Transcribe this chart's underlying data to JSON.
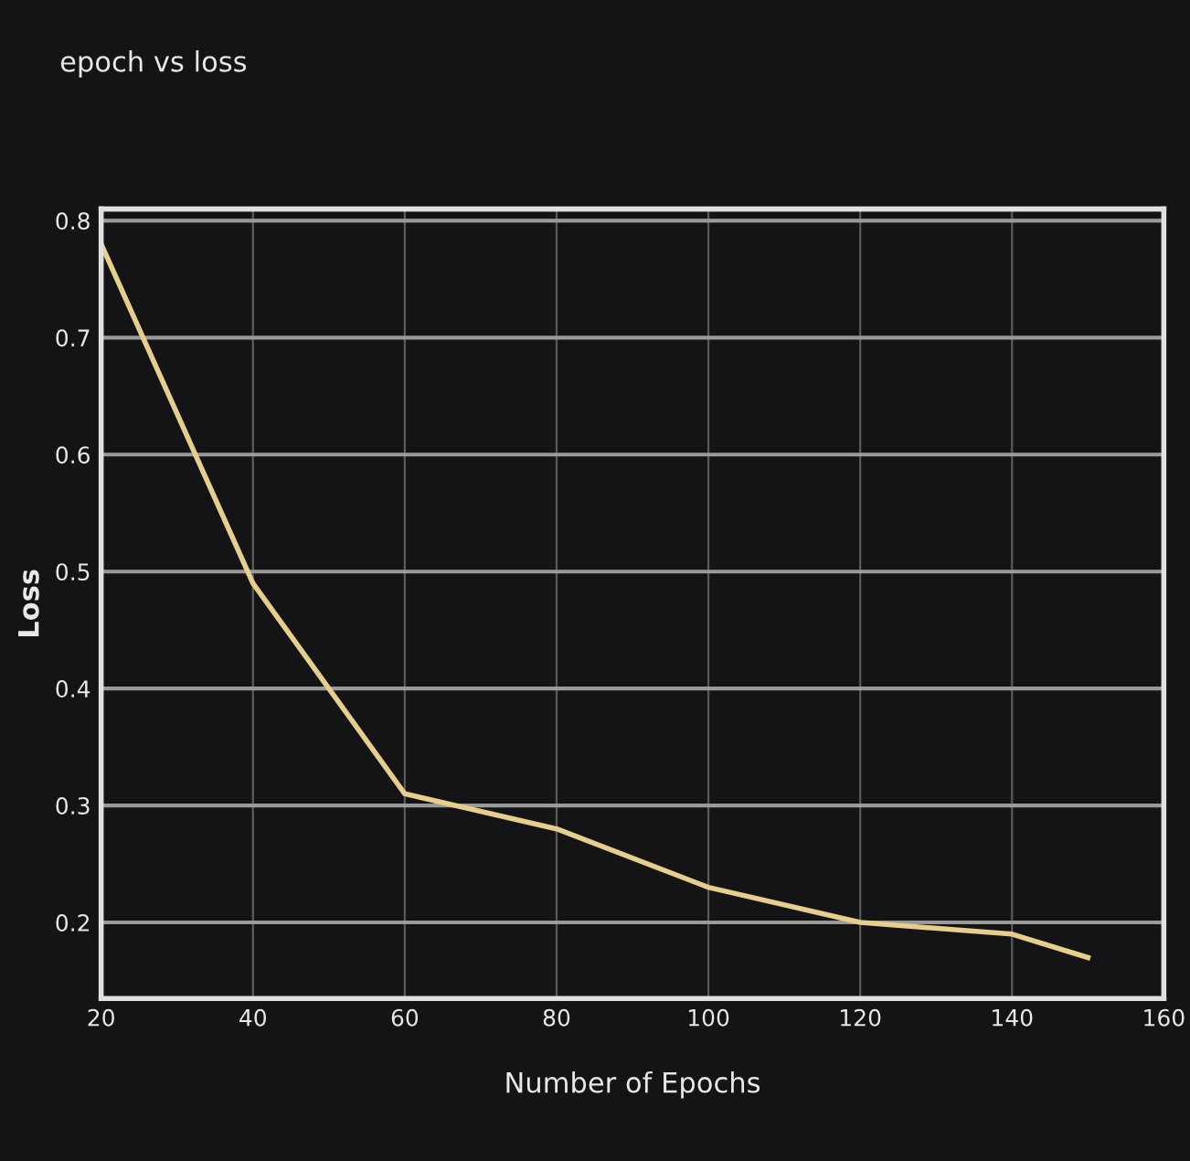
{
  "chart_data": {
    "type": "line",
    "title": "epoch vs loss",
    "xlabel": "Number of Epochs",
    "ylabel": "Loss",
    "x": [
      20,
      40,
      60,
      80,
      100,
      120,
      140,
      150
    ],
    "series": [
      {
        "color": "#e6cf8c",
        "values": [
          0.78,
          0.49,
          0.31,
          0.28,
          0.23,
          0.2,
          0.19,
          0.17
        ]
      }
    ],
    "xlim": [
      20,
      160
    ],
    "xticks": [
      20,
      40,
      60,
      80,
      100,
      120,
      140,
      160
    ],
    "ylim": [
      0.135,
      0.81
    ],
    "yticks": [
      0.2,
      0.3,
      0.4,
      0.5,
      0.6,
      0.7,
      0.8
    ],
    "grid": true,
    "marker": "none",
    "line_style": "solid",
    "legend": false
  }
}
